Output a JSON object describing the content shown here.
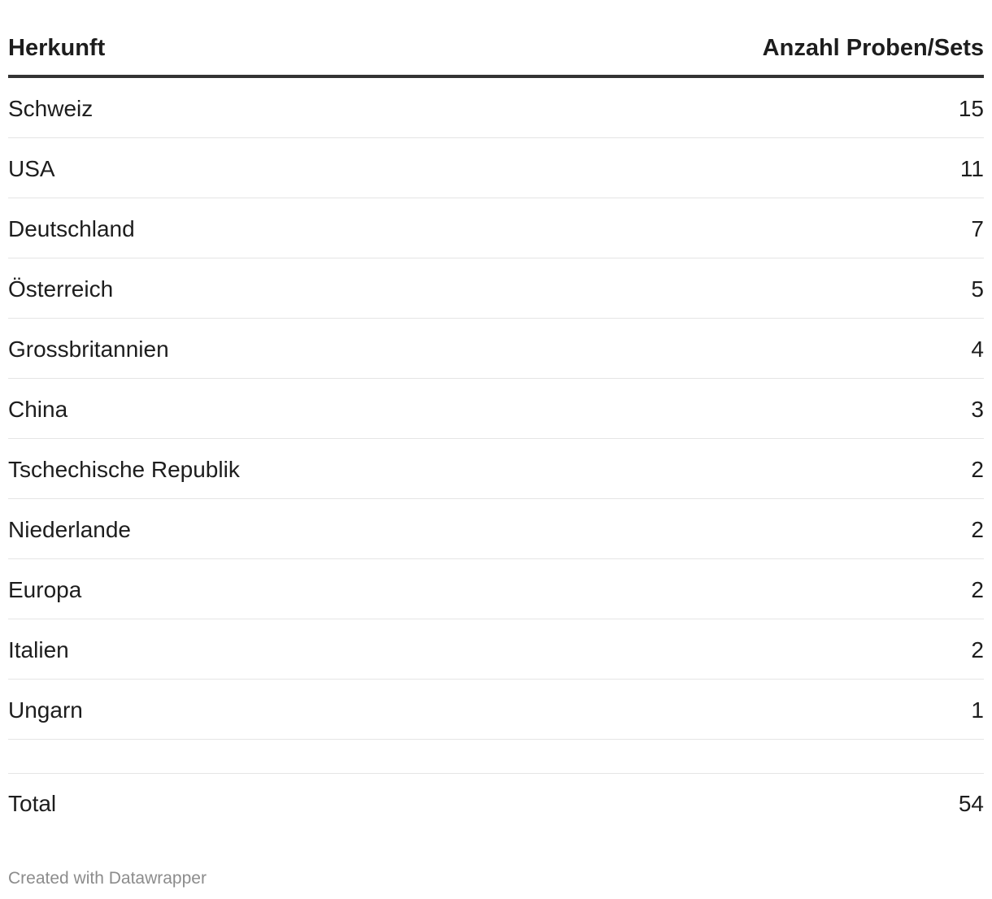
{
  "chart_data": {
    "type": "table",
    "columns": [
      "Herkunft",
      "Anzahl Proben/Sets"
    ],
    "rows": [
      {
        "label": "Schweiz",
        "value": 15
      },
      {
        "label": "USA",
        "value": 11
      },
      {
        "label": "Deutschland",
        "value": 7
      },
      {
        "label": "Österreich",
        "value": 5
      },
      {
        "label": "Grossbritannien",
        "value": 4
      },
      {
        "label": "China",
        "value": 3
      },
      {
        "label": "Tschechische Republik",
        "value": 2
      },
      {
        "label": "Niederlande",
        "value": 2
      },
      {
        "label": "Europa",
        "value": 2
      },
      {
        "label": "Italien",
        "value": 2
      },
      {
        "label": "Ungarn",
        "value": 1
      }
    ],
    "total": {
      "label": "Total",
      "value": 54
    }
  },
  "footer": {
    "credit": "Created with Datawrapper"
  }
}
